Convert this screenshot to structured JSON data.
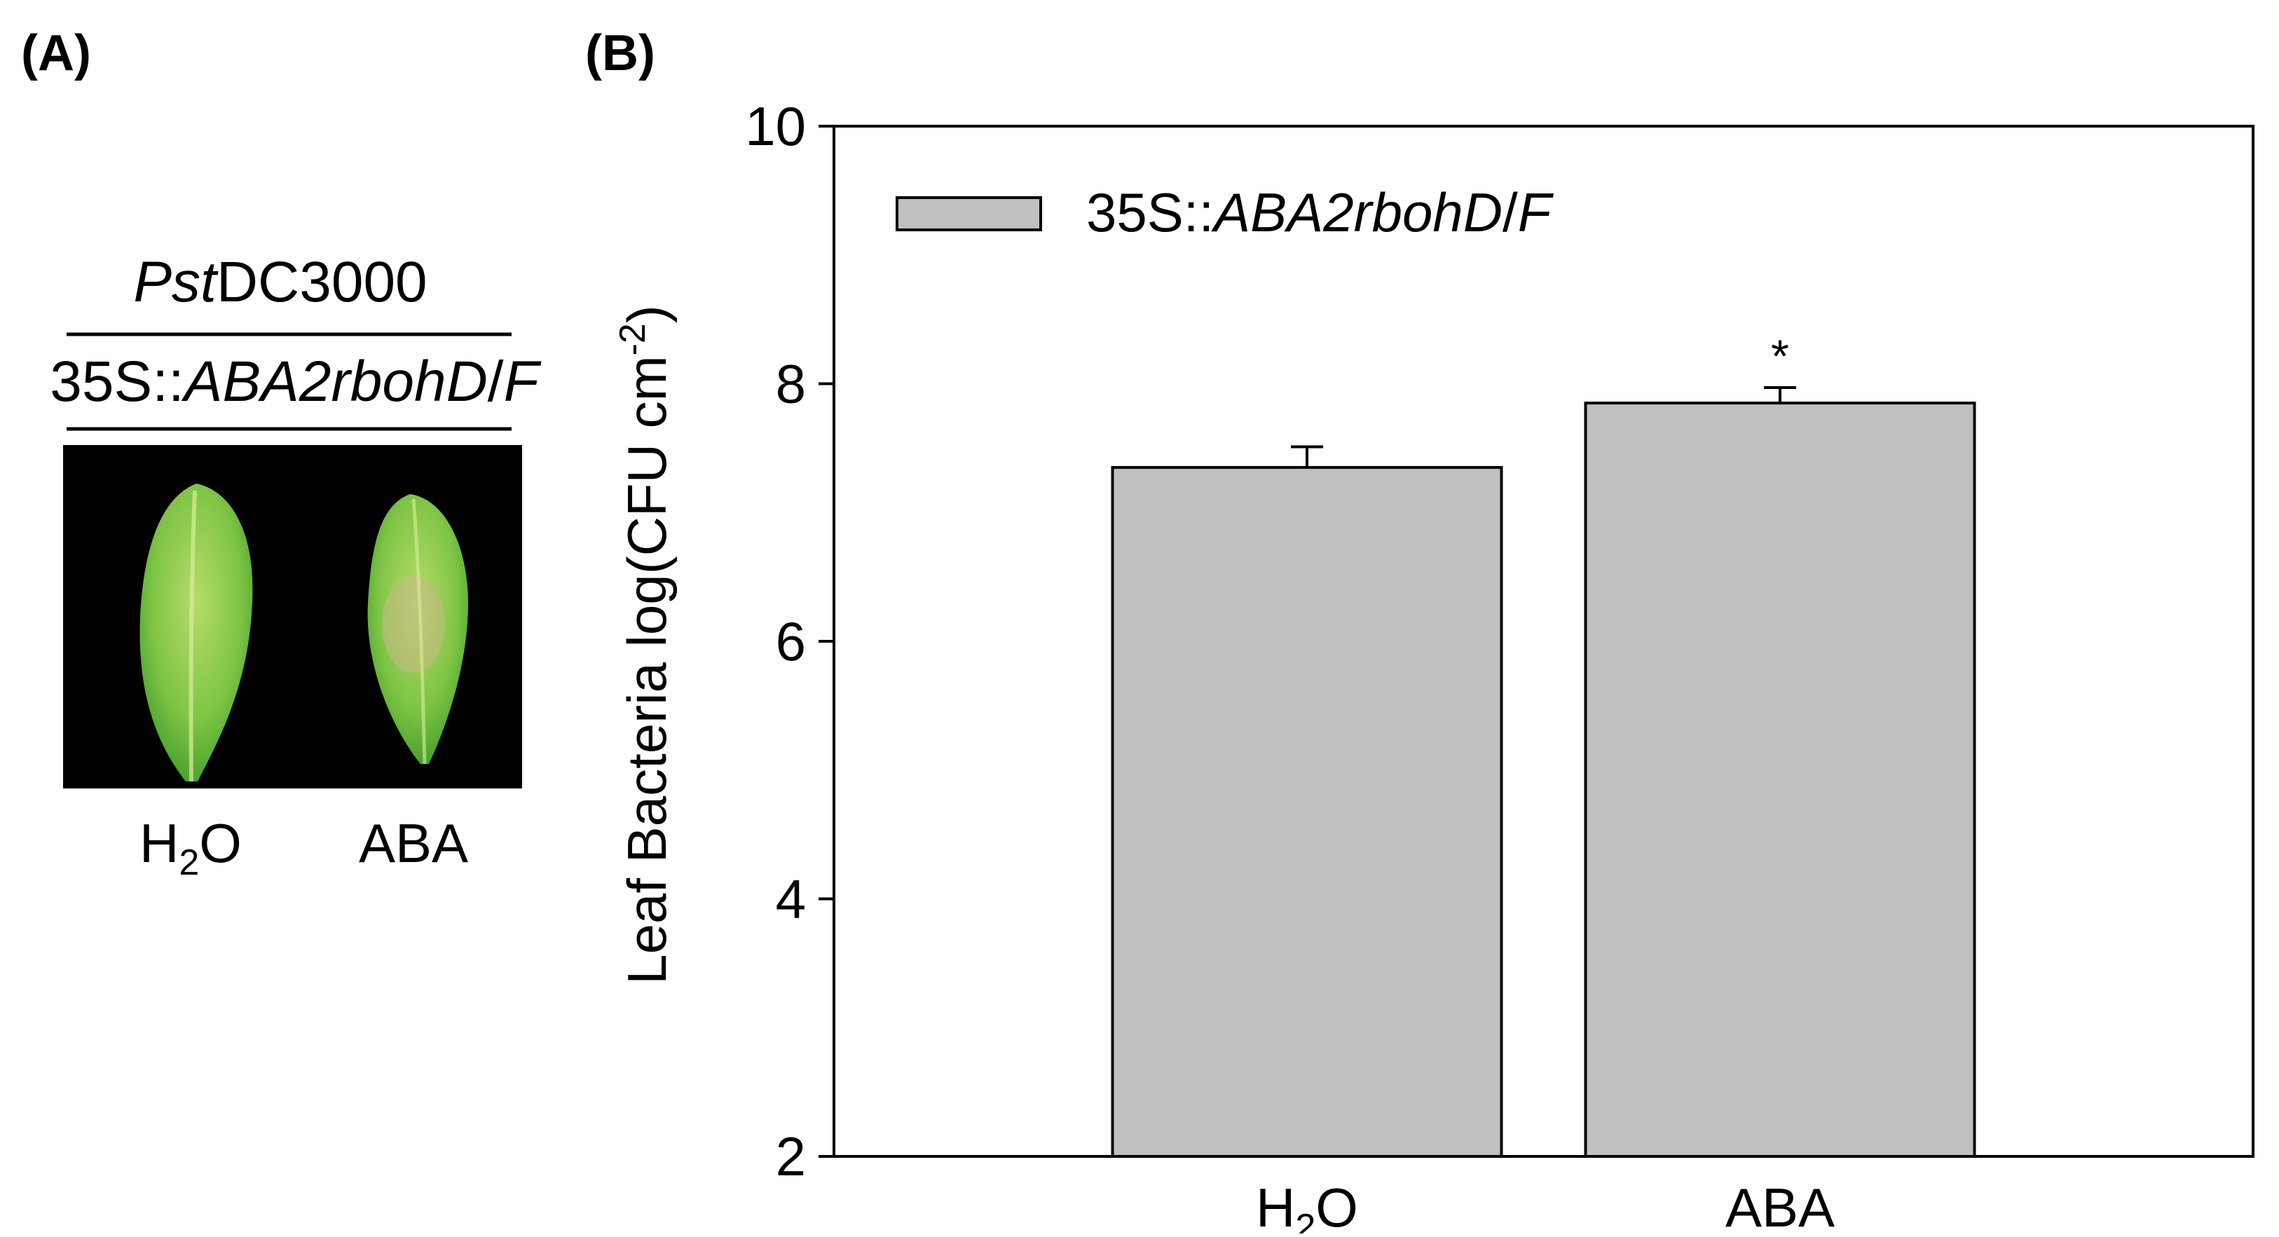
{
  "panel_a": {
    "label": "(A)",
    "header_pathogen": {
      "italic": "Pst",
      "plain": "DC3000"
    },
    "header_genotype": {
      "plain": "35S::",
      "italic_1": "ABA2rbohD",
      "slash": "/",
      "italic_2": "F"
    },
    "photo_colors": {
      "background": "#000000",
      "leaf": "#7fc545",
      "leaf_light": "#b6dc6a",
      "leaf_dark": "#3f9a2a"
    },
    "labels": [
      {
        "base": "H",
        "sub": "2",
        "tail": "O"
      },
      {
        "base": "ABA",
        "sub": "",
        "tail": ""
      }
    ]
  },
  "panel_b": {
    "label": "(B)"
  },
  "chart_data": {
    "type": "bar",
    "categories": [
      {
        "base": "H",
        "sub": "2",
        "tail": "O"
      },
      {
        "base": "ABA",
        "sub": "",
        "tail": ""
      }
    ],
    "series": [
      {
        "legend": {
          "plain": "35S::",
          "italic_1": "ABA2rbohD",
          "slash": "/",
          "italic_2": "F"
        },
        "values": [
          7.35,
          7.85
        ],
        "errors": [
          0.16,
          0.12
        ],
        "significance": [
          "",
          "*"
        ],
        "color": "#c0c0c0"
      }
    ],
    "ylabel": {
      "main": "Leaf Bacteria log(CFU cm",
      "sup": "-2",
      "close": ")"
    },
    "ylim": [
      2,
      10
    ],
    "yticks": [
      2,
      4,
      6,
      8,
      10
    ],
    "legend_position": "top-left",
    "grid": false
  }
}
